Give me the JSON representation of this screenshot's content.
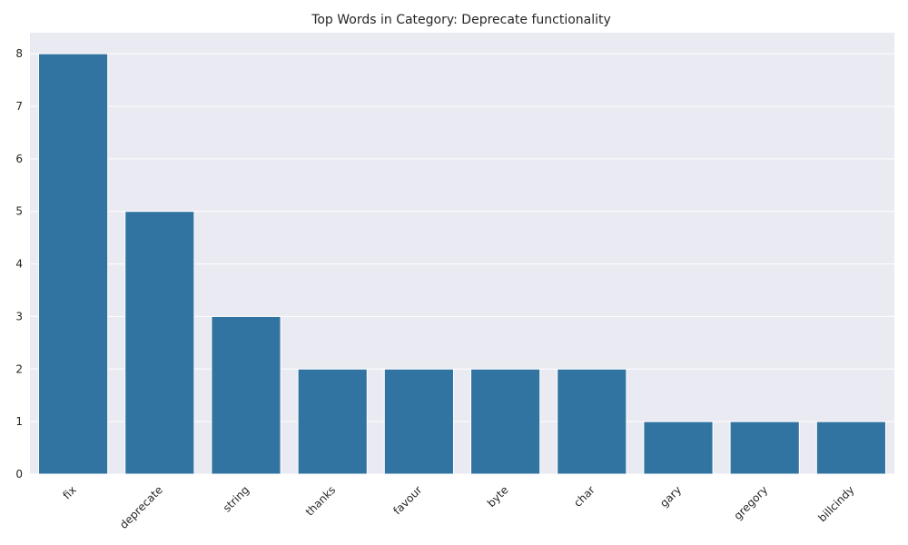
{
  "chart_data": {
    "type": "bar",
    "title": "Top Words in Category: Deprecate functionality",
    "xlabel": "",
    "ylabel": "",
    "categories": [
      "fix",
      "deprecate",
      "string",
      "thanks",
      "favour",
      "byte",
      "char",
      "gary",
      "gregory",
      "billcindy"
    ],
    "values": [
      8,
      5,
      3,
      2,
      2,
      2,
      2,
      1,
      1,
      1
    ],
    "ylim": [
      0,
      8.4
    ],
    "yticks": [
      0,
      1,
      2,
      3,
      4,
      5,
      6,
      7,
      8
    ],
    "grid": "horizontal",
    "x_tick_rotation": 45,
    "colors": {
      "bar": "#3274a1",
      "background": "#eaeaf2",
      "grid": "#ffffff"
    }
  }
}
